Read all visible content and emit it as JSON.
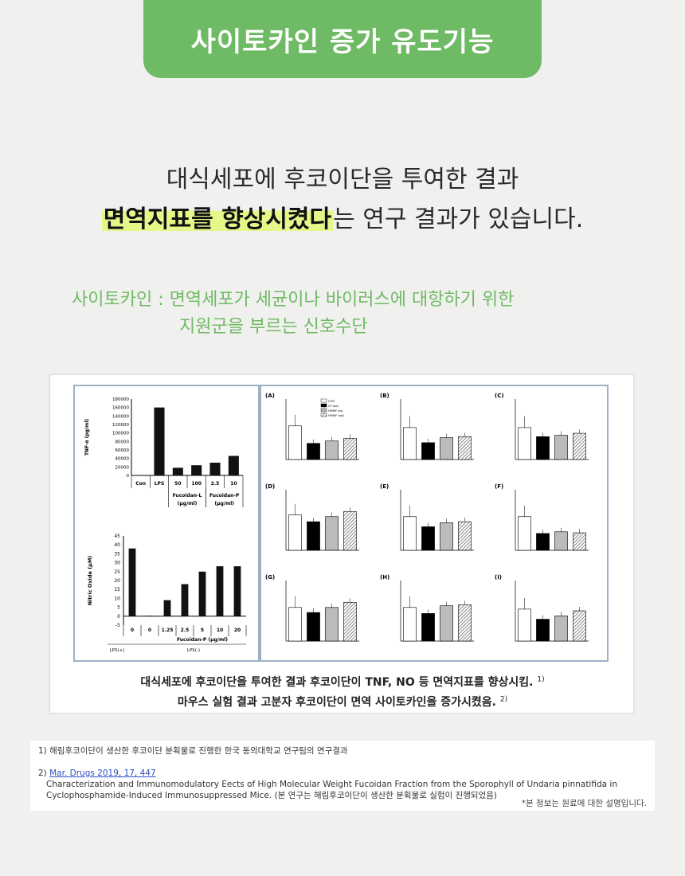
{
  "header": {
    "title": "사이토카인 증가 유도기능"
  },
  "intro": {
    "line1": "대식세포에 후코이단을 투여한 결과",
    "line2_highlight": "면역지표를 향상시켰다",
    "line2_rest": "는 연구 결과가 있습니다."
  },
  "cytokine": {
    "line1": "사이토카인 : 면역세포가 세균이나 바이러스에 대항하기 위한",
    "line2": "지원군을 부르는 신호수단"
  },
  "figure": {
    "caption1": "대식세포에 후코이단을 투여한 결과 후코이단이 TNF, NO 등 면역지표를 향상시킴.",
    "caption1_ref": "1)",
    "caption2": "마우스 실험 결과 고분자 후코이단이 면역 사이토카인을 증가시켰음.",
    "caption2_ref": "2)"
  },
  "chart_data": [
    {
      "type": "bar",
      "ylabel": "TNF-α (pg/ml)",
      "ylim": [
        0,
        180000
      ],
      "yticks": [
        "180000",
        "160000",
        "140000",
        "120000",
        "100000",
        "80000",
        "60000",
        "40000",
        "20000",
        "0"
      ],
      "categories": [
        "Con",
        "LPS",
        "50",
        "100",
        "2.5",
        "10"
      ],
      "groups": [
        "Fucoidan-L (μg/ml)",
        "Fucoidan-P (μg/ml)"
      ],
      "values": [
        1000,
        160000,
        18000,
        24000,
        30000,
        46000
      ]
    },
    {
      "type": "bar",
      "ylabel": "Nitric Oxide (μM)",
      "ylim": [
        -5,
        45
      ],
      "yticks": [
        "45",
        "40",
        "35",
        "30",
        "25",
        "20",
        "15",
        "10",
        "5",
        "0",
        "-5"
      ],
      "categories": [
        "0",
        "0",
        "1.25",
        "2.5",
        "5",
        "10",
        "20"
      ],
      "xlabel": "Fucoidan-P (μg/ml)",
      "groups": [
        "LPS(+)",
        "LPS(-)"
      ],
      "values": [
        38,
        0.3,
        9,
        18,
        25,
        28,
        28
      ]
    },
    {
      "type": "bar",
      "panels": [
        "(A)",
        "(B)",
        "(C)",
        "(D)",
        "(E)",
        "(F)",
        "(G)",
        "(H)",
        "(I)"
      ],
      "legend": [
        "CON",
        "CY only",
        "HMWF low",
        "HMWF high"
      ],
      "ylim": [
        0,
        1.8
      ],
      "values": [
        [
          1.0,
          0.48,
          0.55,
          0.63
        ],
        [
          0.95,
          0.5,
          0.65,
          0.68
        ],
        [
          0.95,
          0.68,
          0.72,
          0.78
        ],
        [
          1.05,
          0.85,
          1.0,
          1.15
        ],
        [
          1.0,
          0.7,
          0.82,
          0.85
        ],
        [
          1.0,
          0.5,
          0.55,
          0.52
        ],
        [
          1.0,
          0.85,
          1.0,
          1.15
        ],
        [
          1.0,
          0.82,
          1.05,
          1.08
        ],
        [
          0.95,
          0.65,
          0.75,
          0.9
        ]
      ]
    }
  ],
  "refs": {
    "r1": "1) 해림후코이단이 생산한 후코이단 분획물로 진행한 한국 동의대학교 연구팀의 연구결과",
    "r2_prefix": "2) ",
    "r2_link": "Mar. Drugs 2019, 17, 447",
    "r2_body": "Characterization and Immunomodulatory Eects of High Molecular Weight Fucoidan Fraction from the Sporophyll of Undaria pinnatifida in Cyclophosphamide-Induced Immunosuppressed Mice. (본 연구는 해림후코이단이 생산한 분획물로 실험이 진행되었음)",
    "note": "*본 정보는 원료에 대한 설명입니다."
  }
}
